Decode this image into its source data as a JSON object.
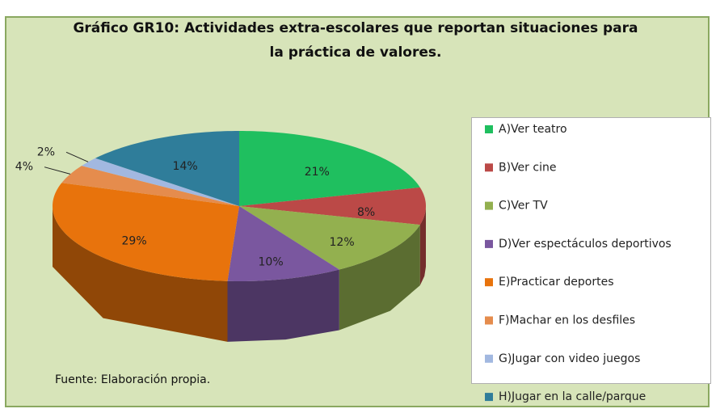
{
  "chart_data": {
    "type": "pie",
    "title": "Gráfico GR10: Actividades extra-escolares que reportan situaciones para la práctica de valores.",
    "categories": [
      "A)Ver teatro",
      "B)Ver cine",
      "C)Ver TV",
      "D)Ver espectáculos deportivos",
      "E)Practicar deportes",
      "F)Machar en los desfiles",
      "G)Jugar con video juegos",
      "H)Jugar en la calle/parque"
    ],
    "values": [
      21,
      8,
      12,
      10,
      29,
      4,
      2,
      14
    ],
    "value_labels": [
      "21%",
      "8%",
      "12%",
      "10%",
      "29%",
      "4%",
      "2%",
      "14%"
    ],
    "colors": [
      "#1fbf5f",
      "#bb4947",
      "#93b04f",
      "#7a579f",
      "#e8730c",
      "#e58c4d",
      "#a2b8e0",
      "#2f7d9a"
    ],
    "legend": "right",
    "source": "Fuente: Elaboración propia."
  }
}
